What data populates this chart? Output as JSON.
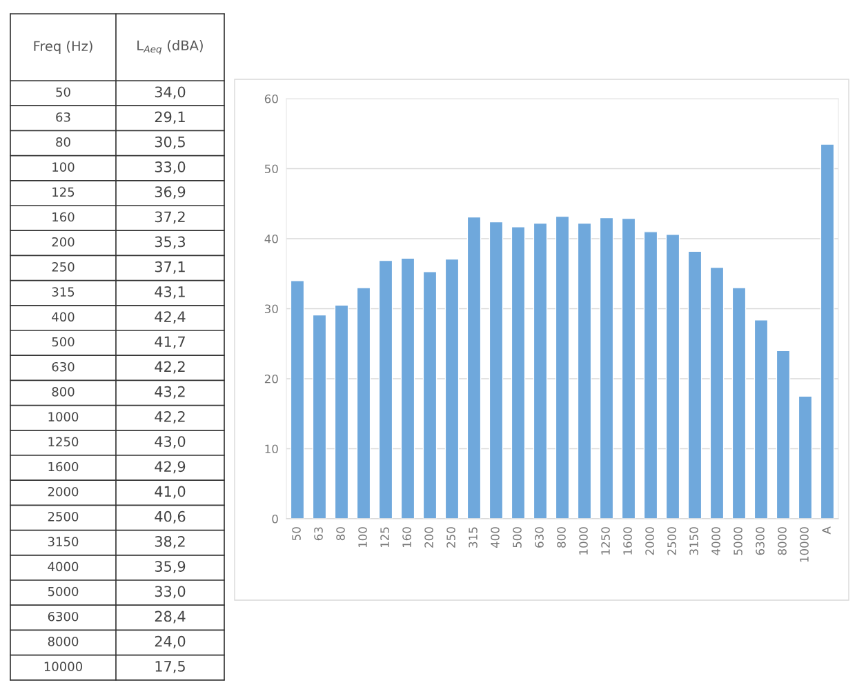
{
  "chart_data": {
    "type": "bar",
    "annotations": [
      "Freq (Hz)",
      "L$_{Aeq}$ (dBA)",
      "50",
      "34,0",
      "63",
      "29,1",
      "80",
      "30,5",
      "100",
      "33,0",
      "125",
      "36,9",
      "160",
      "37,2",
      "200",
      "35,3",
      "250",
      "37,1",
      "315",
      "43,1",
      "400",
      "42,4",
      "500",
      "41,7",
      "630",
      "42,2",
      "800",
      "43,2",
      "1000",
      "42,2",
      "1250",
      "43,0",
      "1600",
      "42,9",
      "2000",
      "41,0",
      "2500",
      "40,6",
      "3150",
      "38,2",
      "4000",
      "35,9",
      "5000",
      "33,0",
      "6300",
      "28,4",
      "8000",
      "24,0",
      "10000",
      "17,5"
    ],
    "categories": [
      "50",
      "63",
      "80",
      "100",
      "125",
      "160",
      "200",
      "250",
      "315",
      "400",
      "500",
      "630",
      "800",
      "1000",
      "1250",
      "1600",
      "2000",
      "2500",
      "3150",
      "4000",
      "5000",
      "6300",
      "8000",
      "10000",
      "A"
    ],
    "values": [
      34.0,
      29.1,
      30.5,
      33.0,
      36.9,
      37.2,
      35.3,
      37.1,
      43.1,
      42.4,
      41.7,
      42.2,
      43.2,
      42.2,
      43.0,
      42.9,
      41.0,
      40.6,
      38.2,
      35.9,
      33.0,
      28.4,
      24.0,
      17.5,
      53.5
    ],
    "color": "#6fa8dc",
    "ylim": [
      0,
      60
    ],
    "yticks": [
      0,
      10,
      20,
      30,
      40,
      50,
      60
    ],
    "grid": "y",
    "legend": false
  }
}
